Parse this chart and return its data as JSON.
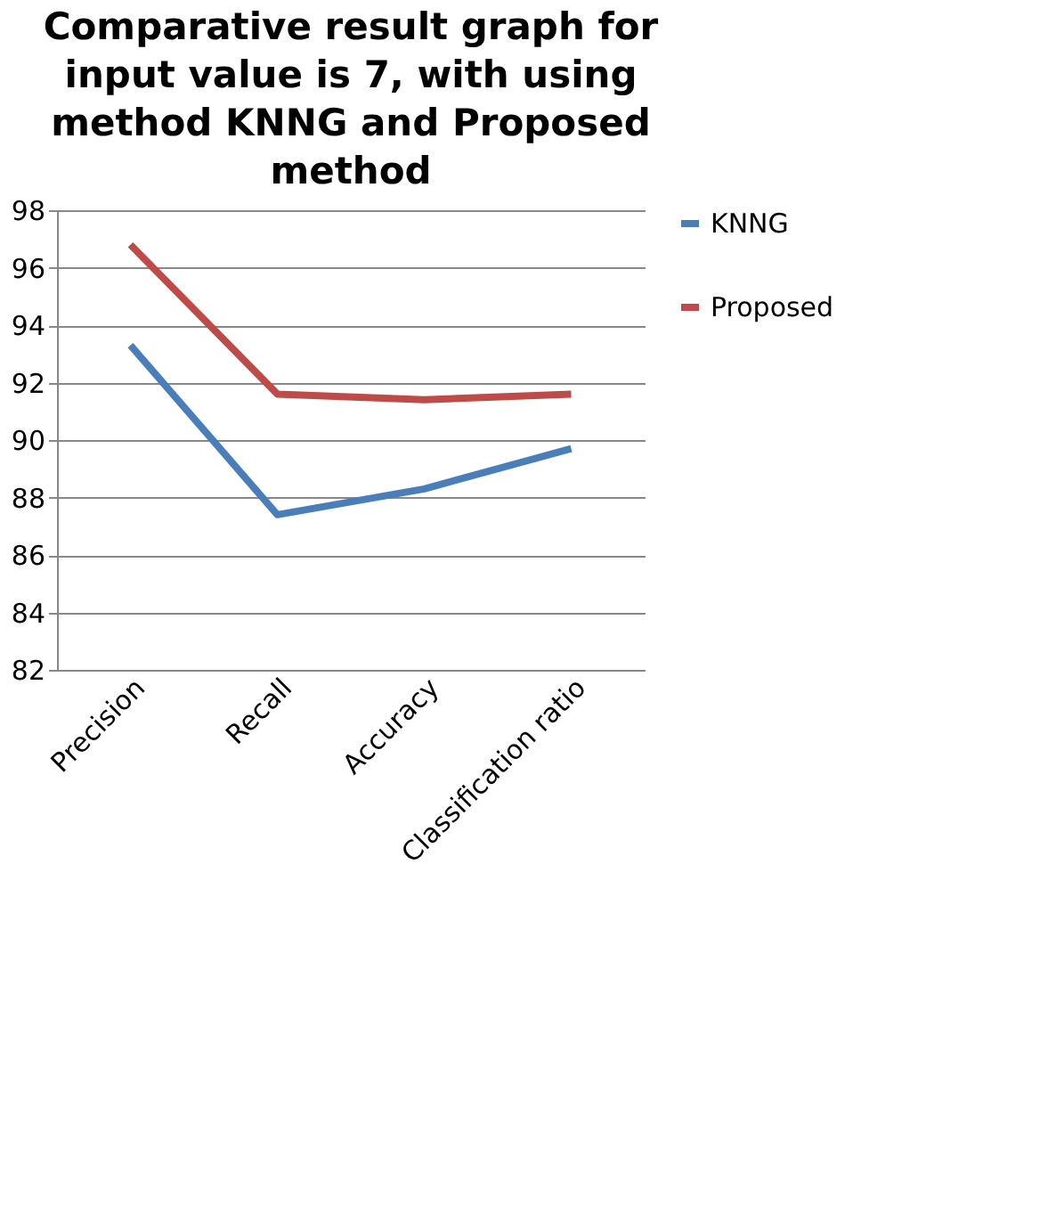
{
  "chart_data": {
    "type": "line",
    "title": "Comparative result graph for input value is 7, with using method KNNG and Proposed method",
    "categories": [
      "Precision",
      "Recall",
      "Accuracy",
      "Classification ratio"
    ],
    "series": [
      {
        "name": "KNNG",
        "color": "#4a7ebb",
        "values": [
          93.3,
          87.4,
          88.3,
          89.7
        ]
      },
      {
        "name": "Proposed",
        "color": "#be4b48",
        "values": [
          96.8,
          91.6,
          91.4,
          91.6
        ]
      }
    ],
    "ylim": [
      82,
      98
    ],
    "yticks": [
      82,
      84,
      86,
      88,
      90,
      92,
      94,
      96,
      98
    ],
    "grid": "y",
    "legend": "right",
    "marker": "none",
    "line_style": "solid"
  }
}
